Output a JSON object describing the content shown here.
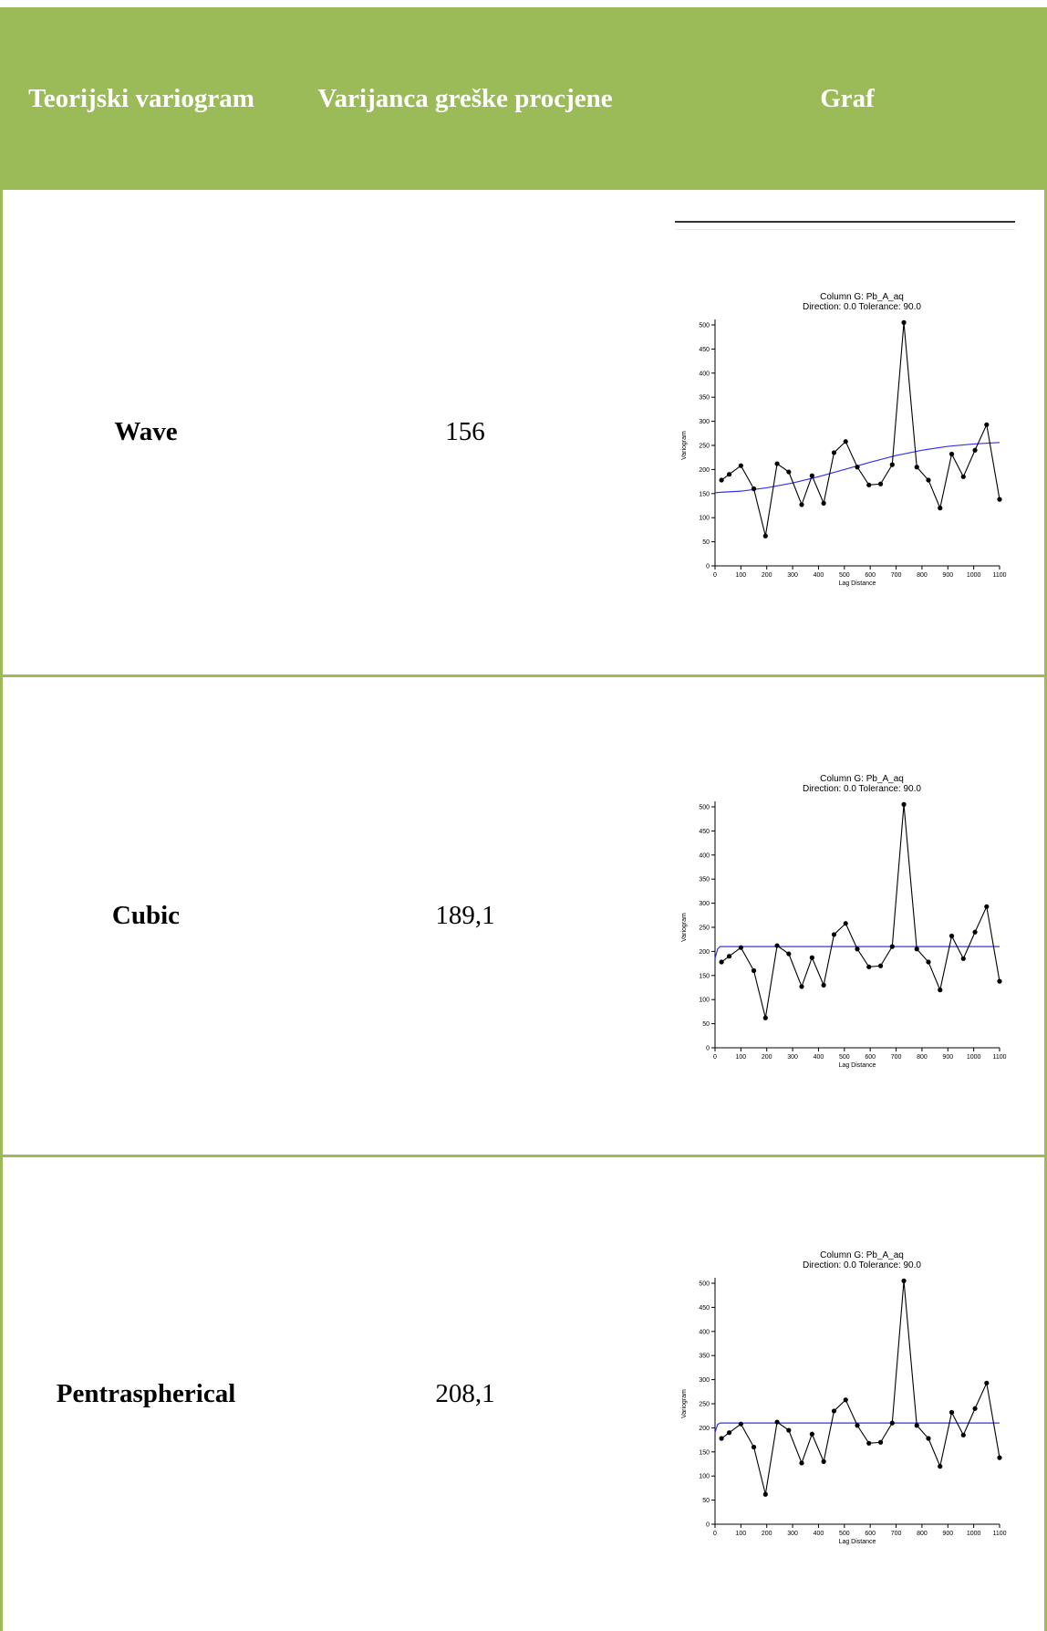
{
  "table": {
    "headers": [
      "Teorijski variogram",
      "Varijanca greške procjene",
      "Graf"
    ],
    "rows": [
      {
        "model": "Wave",
        "variance": "156"
      },
      {
        "model": "Cubic",
        "variance": "189,1"
      },
      {
        "model": "Pentraspherical",
        "variance": "208,1"
      }
    ]
  },
  "colors": {
    "header_bg": "#9bbb59",
    "header_text": "#ffffff",
    "empirical": "#000000",
    "model": "#3333ee"
  },
  "chart_data": [
    {
      "type": "line",
      "title": "Column G:  Pb_A_aq",
      "subtitle": "Direction: 0.0   Tolerance: 90.0",
      "xlabel": "Lag Distance",
      "ylabel": "Variogram",
      "xlim": [
        0,
        1100
      ],
      "ylim": [
        0,
        500
      ],
      "xticks": [
        "0",
        "100",
        "200",
        "300",
        "400",
        "500",
        "600",
        "700",
        "800",
        "900",
        "1000",
        "1100"
      ],
      "yticks": [
        "0",
        "50",
        "100",
        "150",
        "200",
        "250",
        "300",
        "350",
        "400",
        "450",
        "500"
      ],
      "series": [
        {
          "x": [
            25,
            55,
            100,
            150,
            195,
            240,
            285,
            335,
            375,
            420,
            460,
            505,
            550,
            595,
            640,
            685,
            730,
            780,
            825,
            870,
            915,
            960,
            1005,
            1050,
            1100
          ],
          "y": [
            178,
            190,
            208,
            160,
            62,
            212,
            195,
            127,
            187,
            130,
            235,
            258,
            205,
            168,
            170,
            210,
            505,
            205,
            178,
            120,
            232,
            185,
            240,
            293,
            138
          ]
        },
        {
          "x": [
            0,
            100,
            200,
            300,
            400,
            500,
            600,
            700,
            800,
            900,
            1000,
            1100
          ],
          "y": [
            152,
            155,
            162,
            172,
            185,
            200,
            215,
            229,
            240,
            248,
            253,
            256
          ]
        }
      ]
    },
    {
      "type": "line",
      "title": "Column G:  Pb_A_aq",
      "subtitle": "Direction: 0.0   Tolerance: 90.0",
      "xlabel": "Lag Distance",
      "ylabel": "Variogram",
      "xlim": [
        0,
        1100
      ],
      "ylim": [
        0,
        500
      ],
      "xticks": [
        "0",
        "100",
        "200",
        "300",
        "400",
        "500",
        "600",
        "700",
        "800",
        "900",
        "1000",
        "1100"
      ],
      "yticks": [
        "0",
        "50",
        "100",
        "150",
        "200",
        "250",
        "300",
        "350",
        "400",
        "450",
        "500"
      ],
      "series": [
        {
          "x": [
            25,
            55,
            100,
            150,
            195,
            240,
            285,
            335,
            375,
            420,
            460,
            505,
            550,
            595,
            640,
            685,
            730,
            780,
            825,
            870,
            915,
            960,
            1005,
            1050,
            1100
          ],
          "y": [
            178,
            190,
            208,
            160,
            62,
            212,
            195,
            127,
            187,
            130,
            235,
            258,
            205,
            168,
            170,
            210,
            505,
            205,
            178,
            120,
            232,
            185,
            240,
            293,
            138
          ]
        },
        {
          "x": [
            0,
            10,
            20,
            1100
          ],
          "y": [
            185,
            205,
            210,
            210
          ]
        }
      ]
    },
    {
      "type": "line",
      "title": "Column G:  Pb_A_aq",
      "subtitle": "Direction: 0.0   Tolerance: 90.0",
      "xlabel": "Lag Distance",
      "ylabel": "Variogram",
      "xlim": [
        0,
        1100
      ],
      "ylim": [
        0,
        500
      ],
      "xticks": [
        "0",
        "100",
        "200",
        "300",
        "400",
        "500",
        "600",
        "700",
        "800",
        "900",
        "1000",
        "1100"
      ],
      "yticks": [
        "0",
        "50",
        "100",
        "150",
        "200",
        "250",
        "300",
        "350",
        "400",
        "450",
        "500"
      ],
      "series": [
        {
          "x": [
            25,
            55,
            100,
            150,
            195,
            240,
            285,
            335,
            375,
            420,
            460,
            505,
            550,
            595,
            640,
            685,
            730,
            780,
            825,
            870,
            915,
            960,
            1005,
            1050,
            1100
          ],
          "y": [
            178,
            190,
            208,
            160,
            62,
            212,
            195,
            127,
            187,
            130,
            235,
            258,
            205,
            168,
            170,
            210,
            505,
            205,
            178,
            120,
            232,
            185,
            240,
            293,
            138
          ]
        },
        {
          "x": [
            0,
            10,
            20,
            1100
          ],
          "y": [
            190,
            207,
            210,
            210
          ]
        }
      ]
    }
  ]
}
